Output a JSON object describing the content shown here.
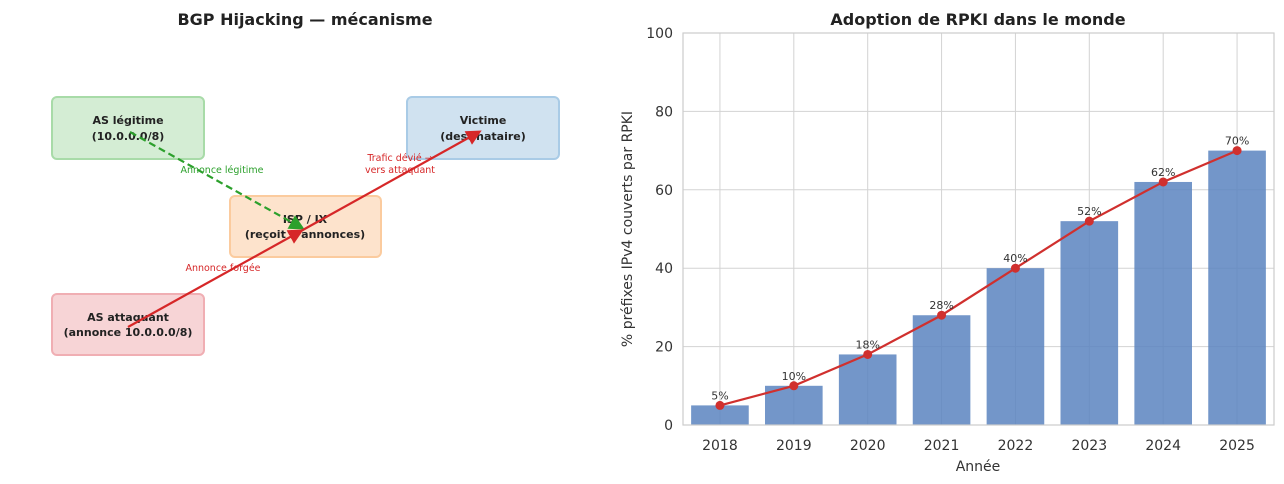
{
  "diagram": {
    "title": "BGP Hijacking — mécanisme",
    "nodes": [
      {
        "id": "legit",
        "lines": [
          "AS légitime",
          "(10.0.0.0/8)"
        ],
        "fill": "#d4edd4",
        "stroke": "#a8dba8"
      },
      {
        "id": "victim",
        "lines": [
          "Victime",
          "(destinataire)"
        ],
        "fill": "#d0e2f0",
        "stroke": "#a9cbe6"
      },
      {
        "id": "isp",
        "lines": [
          "ISP / IX",
          "(reçoit 2 annonces)"
        ],
        "fill": "#fde3cc",
        "stroke": "#fbcb9e"
      },
      {
        "id": "attacker",
        "lines": [
          "AS attaquant",
          "(annonce 10.0.0.0/8)"
        ],
        "fill": "#f7d4d6",
        "stroke": "#f0aeb3"
      }
    ],
    "edges": [
      {
        "id": "legit-to-isp",
        "label": [
          "Annonce légitime"
        ],
        "color": "#2ca02c",
        "style": "dashed"
      },
      {
        "id": "attacker-to-victim",
        "label": [
          "Annonce forgée"
        ],
        "color": "#d62728",
        "style": "solid"
      },
      {
        "id": "diverted",
        "label": [
          "Trafic dévié →",
          "vers attaquant"
        ],
        "color": "#d62728",
        "style": "solid"
      }
    ]
  },
  "chart_data": {
    "type": "bar",
    "title": "Adoption de RPKI dans le monde",
    "xlabel": "Année",
    "ylabel": "% préfixes IPv4 couverts par RPKI",
    "categories": [
      "2018",
      "2019",
      "2020",
      "2021",
      "2022",
      "2023",
      "2024",
      "2025"
    ],
    "values": [
      5,
      10,
      18,
      28,
      40,
      52,
      62,
      70
    ],
    "data_labels": [
      "5%",
      "10%",
      "18%",
      "28%",
      "40%",
      "52%",
      "62%",
      "70%"
    ],
    "ylim": [
      0,
      100
    ],
    "yticks": [
      "0",
      "20",
      "40",
      "60",
      "80",
      "100"
    ],
    "grid": true,
    "bar_color": "#5b84c0",
    "line_color": "#d0302e",
    "overlay": "line"
  }
}
